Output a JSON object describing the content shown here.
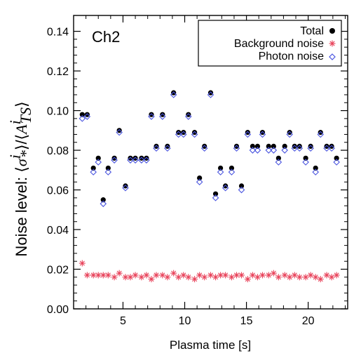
{
  "chart_data": {
    "type": "scatter",
    "title": "",
    "panel_label": "Ch2",
    "xlabel": "Plasma time [s]",
    "ylabel": {
      "prefix": "Noise level: ",
      "num_sym": "σ",
      "num_sup": "i",
      "num_sub": "*",
      "den_sym": "A",
      "den_sup": "i",
      "den_sub": "TS"
    },
    "xlim": [
      1,
      23.2
    ],
    "ylim": [
      0,
      0.148
    ],
    "xticks": [
      5,
      10,
      15,
      20
    ],
    "xtick_labels": [
      "5",
      "10",
      "15",
      "20"
    ],
    "yticks": [
      0.0,
      0.02,
      0.04,
      0.06,
      0.08,
      0.1,
      0.12,
      0.14
    ],
    "ytick_labels": [
      "0.00",
      "0.02",
      "0.04",
      "0.06",
      "0.08",
      "0.10",
      "0.12",
      "0.14"
    ],
    "grid": false,
    "legend_position": "top-right",
    "x": [
      1.7,
      2.1,
      2.6,
      3.0,
      3.4,
      3.8,
      4.3,
      4.7,
      5.2,
      5.6,
      6.0,
      6.5,
      6.9,
      7.3,
      7.7,
      8.2,
      8.6,
      9.1,
      9.5,
      9.9,
      10.3,
      10.8,
      11.2,
      11.6,
      12.1,
      12.5,
      12.9,
      13.3,
      13.8,
      14.2,
      14.6,
      15.1,
      15.5,
      15.9,
      16.3,
      16.8,
      17.2,
      17.6,
      18.1,
      18.5,
      18.9,
      19.3,
      19.8,
      20.2,
      20.6,
      21.0,
      21.5,
      21.9,
      22.3
    ],
    "series": [
      {
        "name": "Total",
        "marker": "filled-circle",
        "color": "#000000",
        "values": [
          0.098,
          0.098,
          0.071,
          0.076,
          0.055,
          0.071,
          0.076,
          0.09,
          0.062,
          0.076,
          0.076,
          0.076,
          0.076,
          0.098,
          0.082,
          0.098,
          0.082,
          0.109,
          0.089,
          0.089,
          0.098,
          0.089,
          0.066,
          0.082,
          0.109,
          0.058,
          0.071,
          0.062,
          0.071,
          0.082,
          0.062,
          0.089,
          0.082,
          0.082,
          0.089,
          0.082,
          0.082,
          0.076,
          0.082,
          0.089,
          0.082,
          0.082,
          0.076,
          0.082,
          0.071,
          0.089,
          0.082,
          0.082,
          0.076
        ]
      },
      {
        "name": "Background noise",
        "marker": "asterisk",
        "color": "#e8425a",
        "values": [
          0.023,
          0.017,
          0.017,
          0.017,
          0.017,
          0.017,
          0.016,
          0.018,
          0.016,
          0.016,
          0.017,
          0.016,
          0.017,
          0.015,
          0.017,
          0.017,
          0.016,
          0.018,
          0.016,
          0.017,
          0.016,
          0.015,
          0.017,
          0.016,
          0.017,
          0.016,
          0.017,
          0.017,
          0.016,
          0.017,
          0.017,
          0.015,
          0.017,
          0.016,
          0.017,
          0.017,
          0.018,
          0.016,
          0.017,
          0.016,
          0.017,
          0.016,
          0.016,
          0.017,
          0.016,
          0.015,
          0.017,
          0.016,
          0.017
        ]
      },
      {
        "name": "Photon noise",
        "marker": "open-diamond",
        "color": "#4a55e0",
        "values": [
          0.096,
          0.097,
          0.069,
          0.074,
          0.053,
          0.069,
          0.075,
          0.089,
          0.061,
          0.075,
          0.075,
          0.075,
          0.075,
          0.097,
          0.081,
          0.097,
          0.081,
          0.108,
          0.088,
          0.088,
          0.097,
          0.088,
          0.064,
          0.081,
          0.108,
          0.056,
          0.069,
          0.061,
          0.069,
          0.081,
          0.06,
          0.088,
          0.08,
          0.08,
          0.088,
          0.08,
          0.08,
          0.074,
          0.08,
          0.088,
          0.081,
          0.081,
          0.074,
          0.081,
          0.069,
          0.088,
          0.081,
          0.081,
          0.074
        ]
      }
    ]
  }
}
